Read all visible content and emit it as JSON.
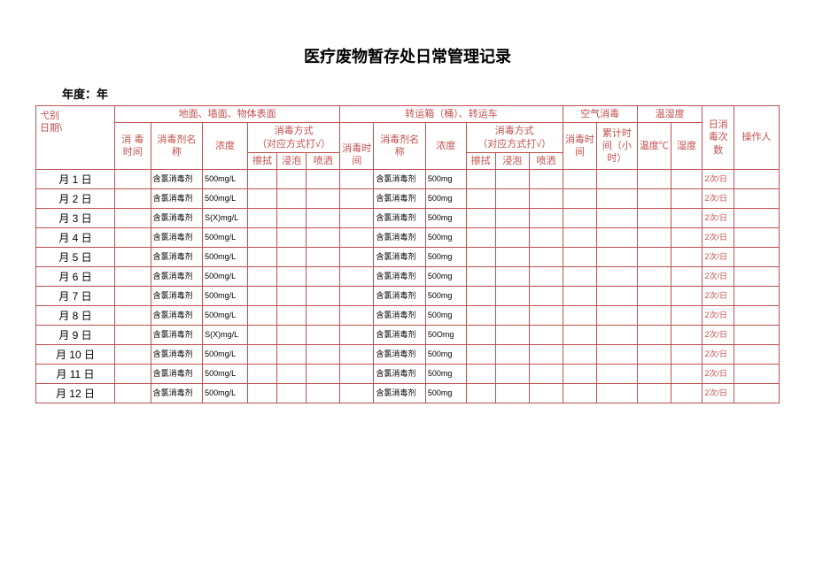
{
  "title": "医疗废物暂存处日常管理记录",
  "year_label": "年度：年",
  "headers": {
    "type_date": "弋别\n日期\\",
    "surface": "地面、墙面、物体表面",
    "transport": "转运箱（桶）、转运车",
    "air": "空气消毒",
    "temp_humid": "温湿度",
    "daily_count": "日消毒次数",
    "operator": "操作人",
    "disinfect_time": "消 毒时间",
    "agent_name": "消毒剂名称",
    "concentration": "浓度",
    "method": "消毒方式\n（对应方式打√）",
    "disinfect_time2": "消毒时间",
    "agent_name2": "消毒剂名称",
    "concentration2": "浓度",
    "method2": "消毒方式\n（对应方式打√）",
    "disinfect_time3": "消毒时间",
    "cum_time": "累计时间（小时）",
    "temp": "温度℃",
    "humidity": "湿度",
    "wipe": "擦拭",
    "soak": "浸泡",
    "spray": "喷洒"
  },
  "rows": [
    {
      "date": "月 1 日",
      "agent1": "含氯消毒剂",
      "conc1": "500mg/L",
      "agent2": "含氯消毒剂",
      "conc2": "500mg",
      "count": "2次/日"
    },
    {
      "date": "月 2 日",
      "agent1": "含氯消毒剂",
      "conc1": "500mg/L",
      "agent2": "含氯消毒剂",
      "conc2": "500mg",
      "count": "2次/日"
    },
    {
      "date": "月 3 日",
      "agent1": "含氯消毒剂",
      "conc1": "S(X)mg/L",
      "agent2": "含氯消毒剂",
      "conc2": "500mg",
      "count": "2次/日"
    },
    {
      "date": "月 4 日",
      "agent1": "含氯消毒剂",
      "conc1": "500mg/L",
      "agent2": "含氯消毒剂",
      "conc2": "500mg",
      "count": "2次/日"
    },
    {
      "date": "月 5 日",
      "agent1": "含氯消毒剂",
      "conc1": "500mg/L",
      "agent2": "含氯消毒剂",
      "conc2": "500mg",
      "count": "2次/日"
    },
    {
      "date": "月 6 日",
      "agent1": "含氯消毒剂",
      "conc1": "500mg/L",
      "agent2": "含氯消毒剂",
      "conc2": "500mg",
      "count": "2次/日"
    },
    {
      "date": "月 7 日",
      "agent1": "含氯消毒剂",
      "conc1": "500mg/L",
      "agent2": "含氯消毒剂",
      "conc2": "500mg",
      "count": "2次/日"
    },
    {
      "date": "月 8 日",
      "agent1": "含氯消毒剂",
      "conc1": "500mg/L",
      "agent2": "含氯消毒剂",
      "conc2": "500mg",
      "count": "2次/日"
    },
    {
      "date": "月 9 日",
      "agent1": "含氯消毒剂",
      "conc1": "S(X)mg/L",
      "agent2": "含氯消毒剂",
      "conc2": "50Omg",
      "count": "2次/日"
    },
    {
      "date": "月 10 日",
      "agent1": "含氯消毒剂",
      "conc1": "500mg/L",
      "agent2": "含氯消毒剂",
      "conc2": "500mg",
      "count": "2次/日"
    },
    {
      "date": "月 11 日",
      "agent1": "含氯消毒剂",
      "conc1": "500mg/L",
      "agent2": "含氯消毒剂",
      "conc2": "500mg",
      "count": "2次/日"
    },
    {
      "date": "月 12 日",
      "agent1": "含氯消毒剂",
      "conc1": "500mg/L",
      "agent2": "含氯消毒剂",
      "conc2": "500mg",
      "count": "2次/日"
    }
  ],
  "colors": {
    "border": "#c0504d",
    "header_text": "#c0504d"
  }
}
